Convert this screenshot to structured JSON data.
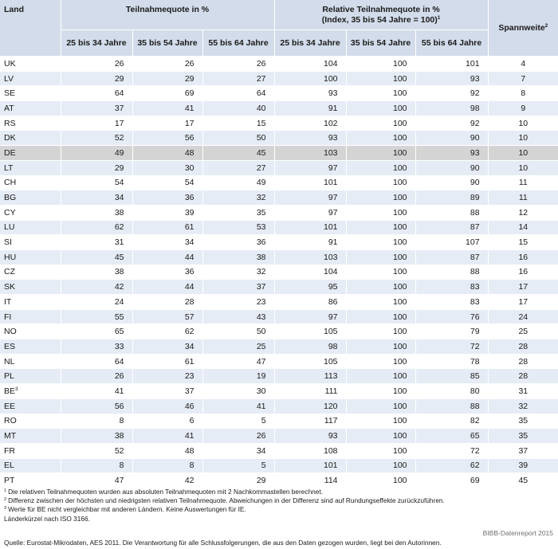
{
  "header": {
    "land": "Land",
    "group1": "Teilnahmequote in %",
    "group2_line1": "Relative Teilnahmequote in %",
    "group2_line2": "(Index, 35 bis 54 Jahre = 100)",
    "group2_sup": "1",
    "spannweite": "Spannweite",
    "spannweite_sup": "2",
    "sub": [
      "25 bis 34 Jahre",
      "35 bis 54 Jahre",
      "55 bis 64 Jahre",
      "25 bis 34 Jahre",
      "35 bis 54 Jahre",
      "55 bis 64 Jahre"
    ]
  },
  "rows": [
    {
      "land": "UK",
      "sup": "",
      "q": [
        "26",
        "26",
        "26"
      ],
      "r": [
        "104",
        "100",
        "101"
      ],
      "s": "4"
    },
    {
      "land": "LV",
      "sup": "",
      "q": [
        "29",
        "29",
        "27"
      ],
      "r": [
        "100",
        "100",
        "93"
      ],
      "s": "7"
    },
    {
      "land": "SE",
      "sup": "",
      "q": [
        "64",
        "69",
        "64"
      ],
      "r": [
        "93",
        "100",
        "92"
      ],
      "s": "8"
    },
    {
      "land": "AT",
      "sup": "",
      "q": [
        "37",
        "41",
        "40"
      ],
      "r": [
        "91",
        "100",
        "98"
      ],
      "s": "9"
    },
    {
      "land": "RS",
      "sup": "",
      "q": [
        "17",
        "17",
        "15"
      ],
      "r": [
        "102",
        "100",
        "92"
      ],
      "s": "10"
    },
    {
      "land": "DK",
      "sup": "",
      "q": [
        "52",
        "56",
        "50"
      ],
      "r": [
        "93",
        "100",
        "90"
      ],
      "s": "10"
    },
    {
      "land": "DE",
      "sup": "",
      "q": [
        "49",
        "48",
        "45"
      ],
      "r": [
        "103",
        "100",
        "93"
      ],
      "s": "10"
    },
    {
      "land": "LT",
      "sup": "",
      "q": [
        "29",
        "30",
        "27"
      ],
      "r": [
        "97",
        "100",
        "90"
      ],
      "s": "10"
    },
    {
      "land": "CH",
      "sup": "",
      "q": [
        "54",
        "54",
        "49"
      ],
      "r": [
        "101",
        "100",
        "90"
      ],
      "s": "11"
    },
    {
      "land": "BG",
      "sup": "",
      "q": [
        "34",
        "36",
        "32"
      ],
      "r": [
        "97",
        "100",
        "89"
      ],
      "s": "11"
    },
    {
      "land": "CY",
      "sup": "",
      "q": [
        "38",
        "39",
        "35"
      ],
      "r": [
        "97",
        "100",
        "88"
      ],
      "s": "12"
    },
    {
      "land": "LU",
      "sup": "",
      "q": [
        "62",
        "61",
        "53"
      ],
      "r": [
        "101",
        "100",
        "87"
      ],
      "s": "14"
    },
    {
      "land": "SI",
      "sup": "",
      "q": [
        "31",
        "34",
        "36"
      ],
      "r": [
        "91",
        "100",
        "107"
      ],
      "s": "15"
    },
    {
      "land": "HU",
      "sup": "",
      "q": [
        "45",
        "44",
        "38"
      ],
      "r": [
        "103",
        "100",
        "87"
      ],
      "s": "16"
    },
    {
      "land": "CZ",
      "sup": "",
      "q": [
        "38",
        "36",
        "32"
      ],
      "r": [
        "104",
        "100",
        "88"
      ],
      "s": "16"
    },
    {
      "land": "SK",
      "sup": "",
      "q": [
        "42",
        "44",
        "37"
      ],
      "r": [
        "95",
        "100",
        "83"
      ],
      "s": "17"
    },
    {
      "land": "IT",
      "sup": "",
      "q": [
        "24",
        "28",
        "23"
      ],
      "r": [
        "86",
        "100",
        "83"
      ],
      "s": "17"
    },
    {
      "land": "FI",
      "sup": "",
      "q": [
        "55",
        "57",
        "43"
      ],
      "r": [
        "97",
        "100",
        "76"
      ],
      "s": "24"
    },
    {
      "land": "NO",
      "sup": "",
      "q": [
        "65",
        "62",
        "50"
      ],
      "r": [
        "105",
        "100",
        "79"
      ],
      "s": "25"
    },
    {
      "land": "ES",
      "sup": "",
      "q": [
        "33",
        "34",
        "25"
      ],
      "r": [
        "98",
        "100",
        "72"
      ],
      "s": "28"
    },
    {
      "land": "NL",
      "sup": "",
      "q": [
        "64",
        "61",
        "47"
      ],
      "r": [
        "105",
        "100",
        "78"
      ],
      "s": "28"
    },
    {
      "land": "PL",
      "sup": "",
      "q": [
        "26",
        "23",
        "19"
      ],
      "r": [
        "113",
        "100",
        "85"
      ],
      "s": "28"
    },
    {
      "land": "BE",
      "sup": "3",
      "q": [
        "41",
        "37",
        "30"
      ],
      "r": [
        "111",
        "100",
        "80"
      ],
      "s": "31"
    },
    {
      "land": "EE",
      "sup": "",
      "q": [
        "56",
        "46",
        "41"
      ],
      "r": [
        "120",
        "100",
        "88"
      ],
      "s": "32"
    },
    {
      "land": "RO",
      "sup": "",
      "q": [
        "8",
        "6",
        "5"
      ],
      "r": [
        "117",
        "100",
        "82"
      ],
      "s": "35"
    },
    {
      "land": "MT",
      "sup": "",
      "q": [
        "38",
        "41",
        "26"
      ],
      "r": [
        "93",
        "100",
        "65"
      ],
      "s": "35"
    },
    {
      "land": "FR",
      "sup": "",
      "q": [
        "52",
        "48",
        "34"
      ],
      "r": [
        "108",
        "100",
        "72"
      ],
      "s": "37"
    },
    {
      "land": "EL",
      "sup": "",
      "q": [
        "8",
        "8",
        "5"
      ],
      "r": [
        "101",
        "100",
        "62"
      ],
      "s": "39"
    },
    {
      "land": "PT",
      "sup": "",
      "q": [
        "47",
        "42",
        "29"
      ],
      "r": [
        "114",
        "100",
        "69"
      ],
      "s": "45"
    }
  ],
  "highlight_row": "DE",
  "footnotes": [
    {
      "sup": "1",
      "text": "Die relativen Teilnahmequoten wurden aus absoluten Teilnahmequoten mit 2 Nachkommastellen berechnet."
    },
    {
      "sup": "2",
      "text": "Differenz zwischen der höchsten und niedrigsten relativen Teilnahmequote. Abweichungen in der Differenz sind auf Rundungseffekte zurückzuführen."
    },
    {
      "sup": "3",
      "text": "Werte für BE nicht vergleichbar mit anderen Ländern. Keine Auswertungen für IE."
    }
  ],
  "country_codes_note": "Länderkürzel nach ISO 3166.",
  "credit": "BIBB-Datenreport 2015",
  "source": "Quelle: Eurostat-Mikrodaten, AES 2011. Die Verantwortung für alle Schlussfolgerungen, die aus den Daten gezogen wurden, liegt bei den Autorinnen.",
  "colors": {
    "header_bg": "#d2dcea",
    "stripe_bg": "#e6ecf5",
    "highlight_bg": "#d4d4d4"
  }
}
